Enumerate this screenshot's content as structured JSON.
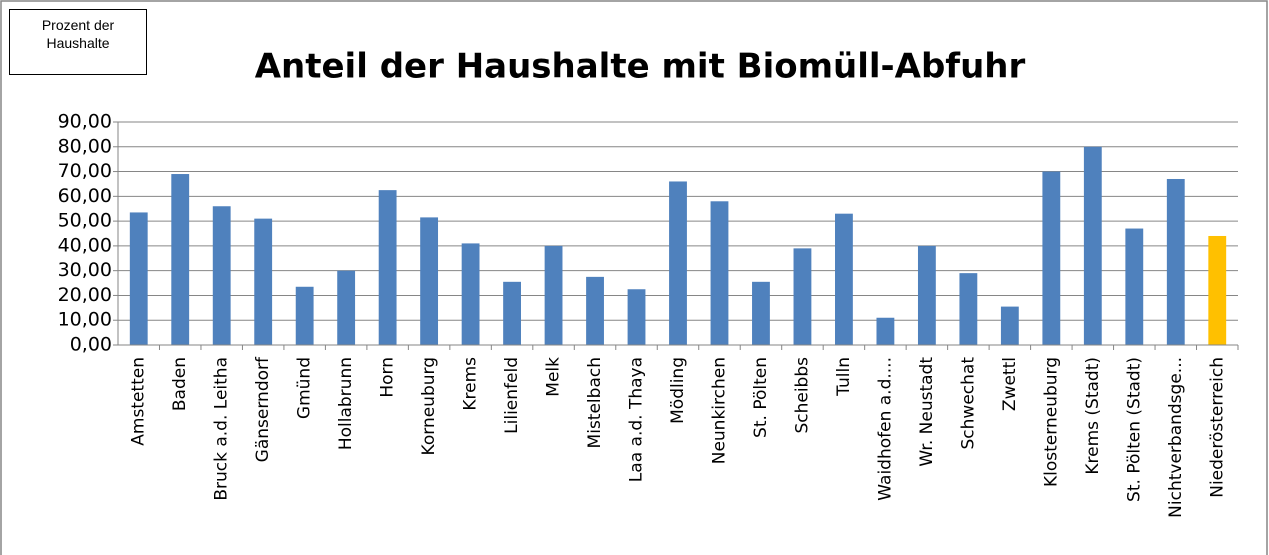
{
  "chart_data": {
    "type": "bar",
    "title": "Anteil der Haushalte mit Biomüll-Abfuhr",
    "y_label": "Prozent der Haushalte",
    "categories": [
      "Amstetten",
      "Baden",
      "Bruck a.d. Leitha",
      "Gänserndorf",
      "Gmünd",
      "Hollabrunn",
      "Horn",
      "Korneuburg",
      "Krems",
      "Lilienfeld",
      "Melk",
      "Mistelbach",
      "Laa a.d. Thaya",
      "Mödling",
      "Neunkirchen",
      "St. Pölten",
      "Scheibbs",
      "Tulln",
      "Waidhofen a.d....",
      "Wr. Neustadt",
      "Schwechat",
      "Zwettl",
      "Klosterneuburg",
      "Krems (Stadt)",
      "St. Pölten (Stadt)",
      "Nichtverbandsge...",
      "Niederösterreich"
    ],
    "values": [
      53.5,
      69,
      56,
      51,
      23.5,
      30,
      62.5,
      51.5,
      41,
      25.5,
      40,
      27.5,
      22.5,
      66,
      58,
      25.5,
      39,
      53,
      11,
      40,
      29,
      15.5,
      70,
      80,
      47,
      67,
      44
    ],
    "colors": [
      "#4f81bd",
      "#4f81bd",
      "#4f81bd",
      "#4f81bd",
      "#4f81bd",
      "#4f81bd",
      "#4f81bd",
      "#4f81bd",
      "#4f81bd",
      "#4f81bd",
      "#4f81bd",
      "#4f81bd",
      "#4f81bd",
      "#4f81bd",
      "#4f81bd",
      "#4f81bd",
      "#4f81bd",
      "#4f81bd",
      "#4f81bd",
      "#4f81bd",
      "#4f81bd",
      "#4f81bd",
      "#4f81bd",
      "#4f81bd",
      "#4f81bd",
      "#4f81bd",
      "#ffc000"
    ],
    "ylim": [
      0,
      90
    ],
    "yticks": [
      {
        "value": 0,
        "label": "0,00"
      },
      {
        "value": 10,
        "label": "10,00"
      },
      {
        "value": 20,
        "label": "20,00"
      },
      {
        "value": 30,
        "label": "30,00"
      },
      {
        "value": 40,
        "label": "40,00"
      },
      {
        "value": 50,
        "label": "50,00"
      },
      {
        "value": 60,
        "label": "60,00"
      },
      {
        "value": 70,
        "label": "70,00"
      },
      {
        "value": 80,
        "label": "80,00"
      },
      {
        "value": 90,
        "label": "90,00"
      }
    ],
    "grid": true
  }
}
